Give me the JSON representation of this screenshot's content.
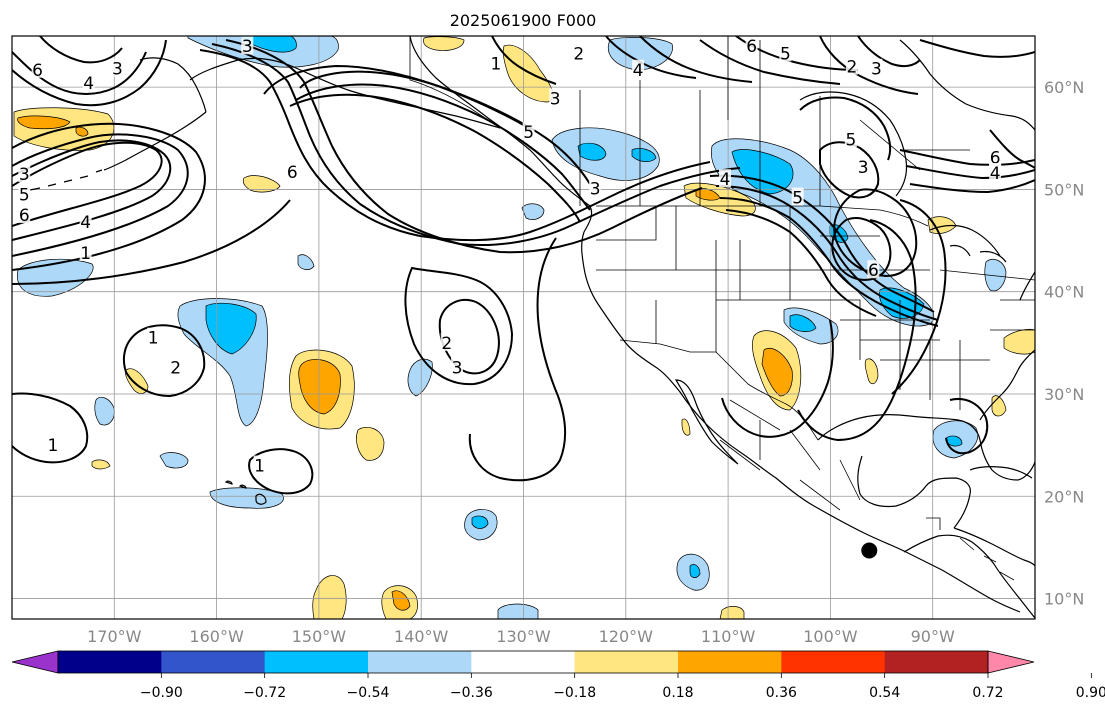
{
  "title": "2025061900 F000",
  "map": {
    "projection": "cylindrical",
    "lon_range": [
      -180,
      -80
    ],
    "lat_range": [
      8,
      65
    ],
    "lon_ticks": [
      {
        "lon": -170,
        "label": "170°W"
      },
      {
        "lon": -160,
        "label": "160°W"
      },
      {
        "lon": -150,
        "label": "150°W"
      },
      {
        "lon": -140,
        "label": "140°W"
      },
      {
        "lon": -130,
        "label": "130°W"
      },
      {
        "lon": -120,
        "label": "120°W"
      },
      {
        "lon": -110,
        "label": "110°W"
      },
      {
        "lon": -100,
        "label": "100°W"
      },
      {
        "lon": -90,
        "label": "90°W"
      }
    ],
    "lat_ticks": [
      {
        "lat": 60,
        "label": "60°N"
      },
      {
        "lat": 50,
        "label": "50°N"
      },
      {
        "lat": 40,
        "label": "40°N"
      },
      {
        "lat": 30,
        "label": "30°N"
      },
      {
        "lat": 20,
        "label": "20°N"
      },
      {
        "lat": 10,
        "label": "10°N"
      }
    ],
    "gridlines": true,
    "marker": {
      "lon": -96.2,
      "lat": 14.7,
      "color": "#000000"
    }
  },
  "contour_labels": [
    {
      "lon": -177.5,
      "lat": 61.7,
      "text": "6"
    },
    {
      "lon": -172.5,
      "lat": 60.4,
      "text": "4"
    },
    {
      "lon": -169.7,
      "lat": 61.8,
      "text": "3"
    },
    {
      "lon": -157,
      "lat": 64,
      "text": "3"
    },
    {
      "lon": -178.8,
      "lat": 51.5,
      "text": "3"
    },
    {
      "lon": -178.8,
      "lat": 49.5,
      "text": "5"
    },
    {
      "lon": -178.8,
      "lat": 47.5,
      "text": "6"
    },
    {
      "lon": -172.8,
      "lat": 46.8,
      "text": "4"
    },
    {
      "lon": -172.8,
      "lat": 43.8,
      "text": "1"
    },
    {
      "lon": -152.6,
      "lat": 51.7,
      "text": "6"
    },
    {
      "lon": -132.7,
      "lat": 62.3,
      "text": "1"
    },
    {
      "lon": -126.9,
      "lat": 58.9,
      "text": "3"
    },
    {
      "lon": -124.6,
      "lat": 63.3,
      "text": "2"
    },
    {
      "lon": -118.8,
      "lat": 61.7,
      "text": "4"
    },
    {
      "lon": -107.7,
      "lat": 64.0,
      "text": "6"
    },
    {
      "lon": -104.4,
      "lat": 63.3,
      "text": "5"
    },
    {
      "lon": -97.9,
      "lat": 62.0,
      "text": "2"
    },
    {
      "lon": -95.5,
      "lat": 61.8,
      "text": "3"
    },
    {
      "lon": -129.5,
      "lat": 55.6,
      "text": "5"
    },
    {
      "lon": -123.0,
      "lat": 50.1,
      "text": "3"
    },
    {
      "lon": -98.0,
      "lat": 54.9,
      "text": "5"
    },
    {
      "lon": -96.8,
      "lat": 52.2,
      "text": "3"
    },
    {
      "lon": -83.9,
      "lat": 53.1,
      "text": "6"
    },
    {
      "lon": -83.9,
      "lat": 51.6,
      "text": "4"
    },
    {
      "lon": -110.3,
      "lat": 51.0,
      "text": "4"
    },
    {
      "lon": -103.2,
      "lat": 49.2,
      "text": "5"
    },
    {
      "lon": -95.8,
      "lat": 42.1,
      "text": "6"
    },
    {
      "lon": -166.2,
      "lat": 35.5,
      "text": "1"
    },
    {
      "lon": -164.0,
      "lat": 32.6,
      "text": "2"
    },
    {
      "lon": -137.5,
      "lat": 35.0,
      "text": "2"
    },
    {
      "lon": -136.5,
      "lat": 32.6,
      "text": "3"
    },
    {
      "lon": -176.0,
      "lat": 25.0,
      "text": "1"
    },
    {
      "lon": -155.8,
      "lat": 23.0,
      "text": "1"
    }
  ],
  "colorbar": {
    "colors": [
      "#9933cc",
      "#00008b",
      "#3355cc",
      "#00bfff",
      "#add8f7",
      "#ffffff",
      "#ffe680",
      "#ffa500",
      "#ff3300",
      "#b22222",
      "#ff88aa"
    ],
    "ticks": [
      "−0.90",
      "−0.72",
      "−0.54",
      "−0.36",
      "−0.18",
      "0.18",
      "0.36",
      "0.54",
      "0.72",
      "0.90"
    ]
  },
  "fill_colors": {
    "light_blue": "#add8f7",
    "mid_blue": "#00bfff",
    "light_yellow": "#ffe680",
    "orange": "#ffa500"
  }
}
